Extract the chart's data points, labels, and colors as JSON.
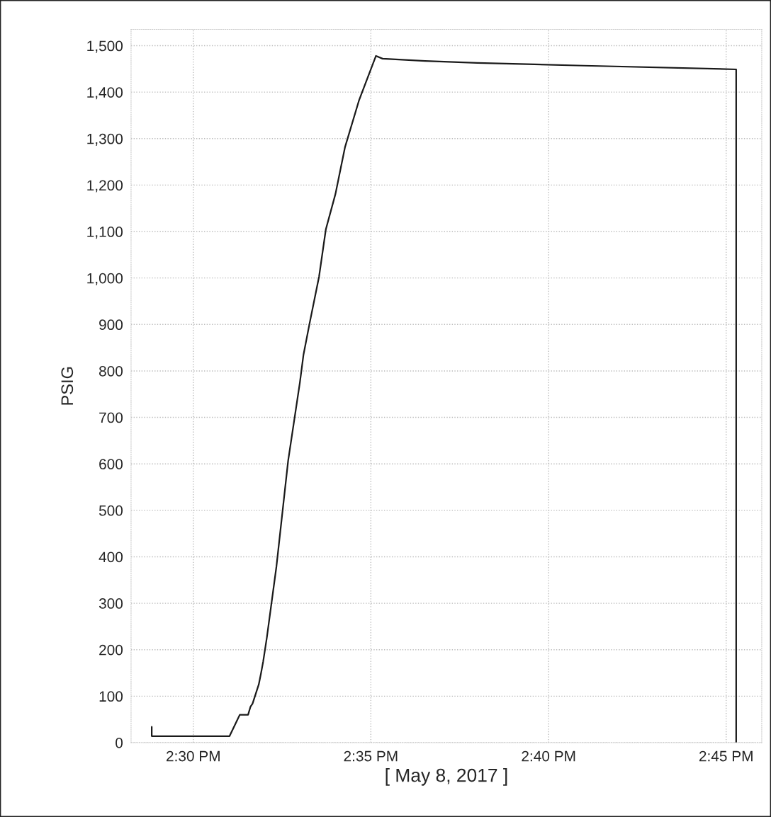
{
  "chart_data": {
    "type": "line",
    "xlabel": "[ May 8, 2017 ]",
    "ylabel": "PSIG",
    "series": [
      {
        "color": "#1a1a1a",
        "x": [
          14.4805,
          14.4805,
          14.517,
          14.5218,
          14.5257,
          14.5268,
          14.5278,
          14.5307,
          14.5318,
          14.5328,
          14.5345,
          14.539,
          14.5445,
          14.55,
          14.5517,
          14.5545,
          14.559,
          14.5622,
          14.5667,
          14.5712,
          14.5778,
          14.5857,
          14.5888,
          14.6088,
          14.6333,
          14.6833,
          14.7547,
          14.7547
        ],
        "values": [
          34,
          14,
          14,
          60,
          60,
          77,
          84,
          125,
          150,
          175,
          226,
          379,
          607,
          775,
          835,
          901,
          1003,
          1105,
          1181,
          1282,
          1383,
          1478,
          1472,
          1467,
          1463,
          1457,
          1449,
          0
        ]
      }
    ],
    "xlim": [
      14.4708,
      14.7667
    ],
    "ylim": [
      0,
      1535
    ],
    "xticks": [
      {
        "value": 14.5,
        "label": "2:30 PM"
      },
      {
        "value": 14.5833,
        "label": "2:35 PM"
      },
      {
        "value": 14.6667,
        "label": "2:40 PM"
      },
      {
        "value": 14.75,
        "label": "2:45 PM"
      }
    ],
    "yticks": [
      0,
      100,
      200,
      300,
      400,
      500,
      600,
      700,
      800,
      900,
      {
        "value": 1000,
        "label": "1,000"
      },
      {
        "value": 1100,
        "label": "1,100"
      },
      {
        "value": 1200,
        "label": "1,200"
      },
      {
        "value": 1300,
        "label": "1,300"
      },
      {
        "value": 1400,
        "label": "1,400"
      },
      {
        "value": 1500,
        "label": "1,500"
      }
    ],
    "grid": true,
    "marker": "none",
    "line_style": "solid"
  }
}
